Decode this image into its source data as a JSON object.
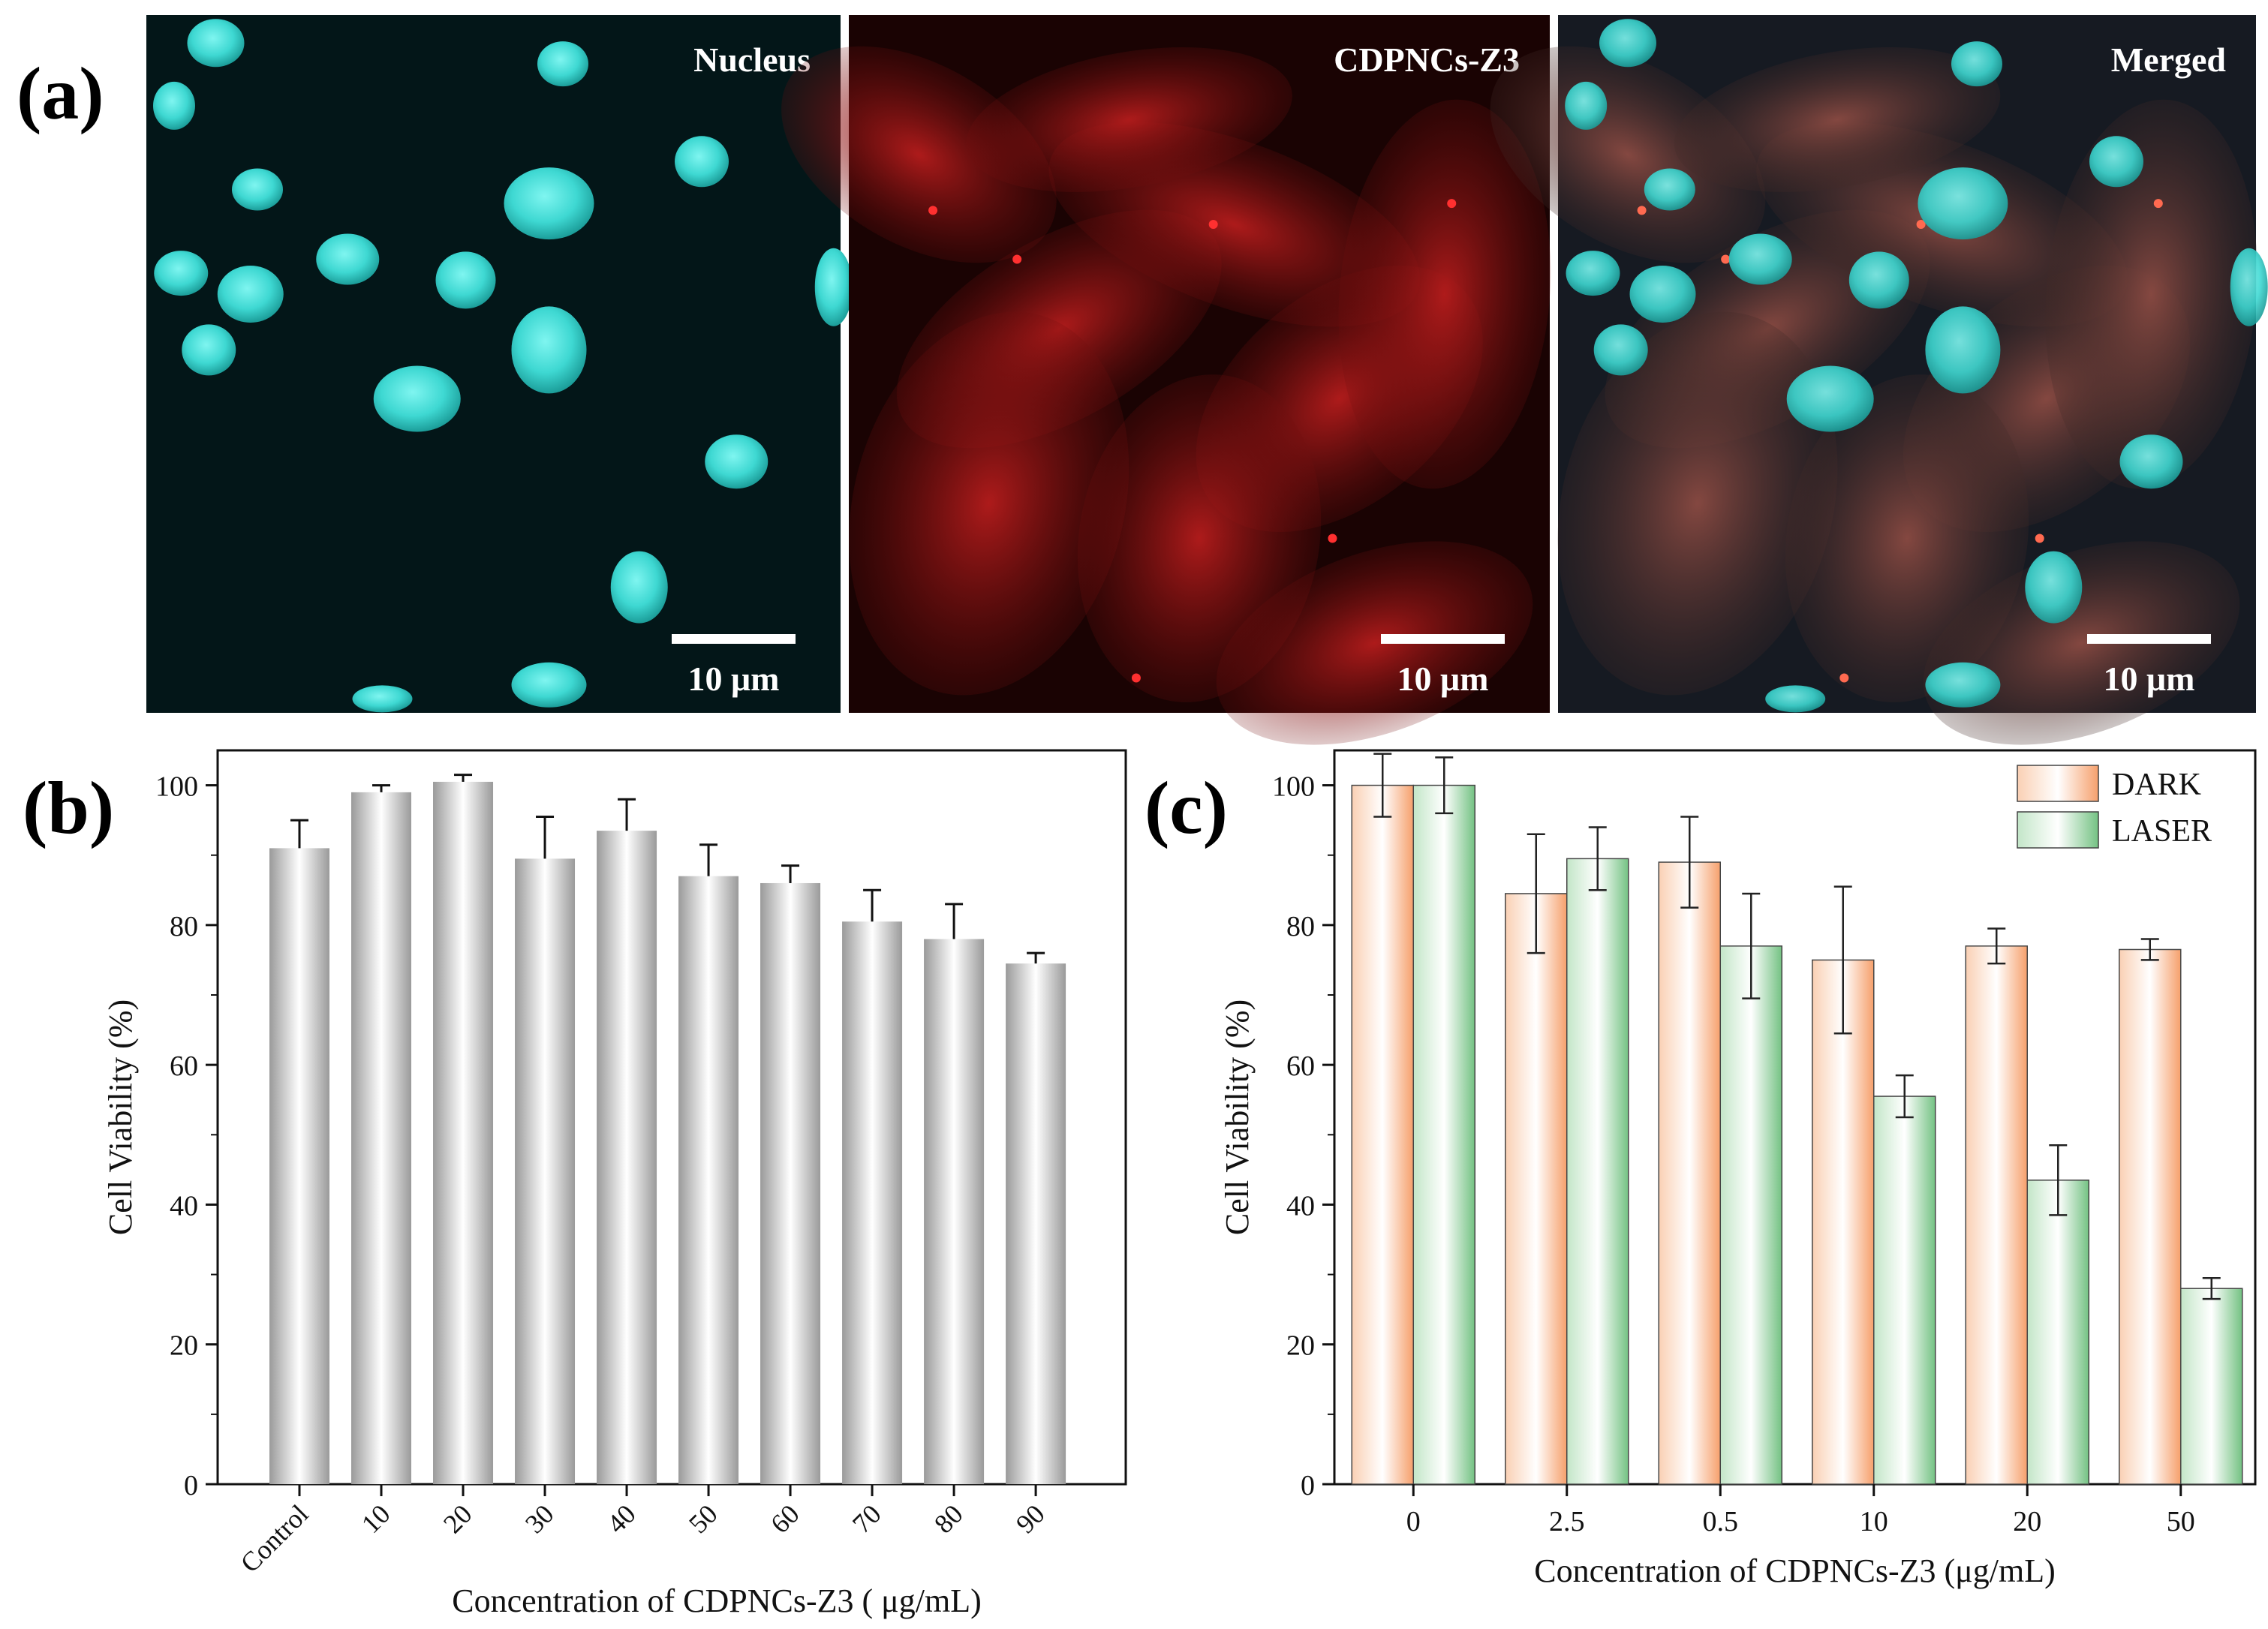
{
  "figure": {
    "panel_a": {
      "letter": "(a)",
      "images": [
        {
          "label": "Nucleus",
          "scale_bar": "10 μm",
          "channel": "nucleus"
        },
        {
          "label": "CDPNCs-Z3",
          "scale_bar": "10 μm",
          "channel": "cdpncs"
        },
        {
          "label": "Merged",
          "scale_bar": "10 μm",
          "channel": "merged"
        }
      ]
    },
    "panel_b_letter": "(b)",
    "panel_c_letter": "(c)"
  },
  "colors": {
    "nucleus": "#2fd6d2",
    "cdpncs_red": "#b01818",
    "dark_bar": "#f6a06c",
    "laser_bar": "#74c283",
    "gray_bar": "#8a8a8a"
  },
  "chart_data": [
    {
      "type": "bar",
      "panel": "b",
      "categories": [
        "Control",
        "10",
        "20",
        "30",
        "40",
        "50",
        "60",
        "70",
        "80",
        "90"
      ],
      "values": [
        91,
        99,
        100.5,
        89.5,
        93.5,
        87,
        86,
        80.5,
        78,
        74.5
      ],
      "errors": [
        4,
        1,
        1,
        6,
        4.5,
        4.5,
        2.5,
        4.5,
        5,
        1.5
      ],
      "error_style": "upper",
      "xlabel": "Concentration of CDPNCs-Z3 ( μg/mL)",
      "ylabel": "Cell Viability (%)",
      "ylim": [
        0,
        105
      ],
      "yticks": [
        "0",
        "20",
        "40",
        "60",
        "80",
        "100"
      ],
      "xtick_rotation": "rotated-45",
      "grid": false
    },
    {
      "type": "bar",
      "panel": "c",
      "categories": [
        "0",
        "2.5",
        "0.5",
        "10",
        "20",
        "50"
      ],
      "series": [
        {
          "name": "DARK",
          "values": [
            100,
            84.5,
            89,
            75,
            77,
            76.5
          ],
          "errors": [
            4.5,
            8.5,
            6.5,
            10.5,
            2.5,
            1.5
          ]
        },
        {
          "name": "LASER",
          "values": [
            100,
            89.5,
            77,
            55.5,
            43.5,
            28
          ],
          "errors": [
            4,
            4.5,
            7.5,
            3,
            5,
            1.5
          ]
        }
      ],
      "xlabel": "Concentration of CDPNCs-Z3 (μg/mL)",
      "ylabel": "Cell Viability (%)",
      "ylim": [
        0,
        105
      ],
      "yticks": [
        "0",
        "20",
        "40",
        "60",
        "80",
        "100"
      ],
      "legend": "top-right",
      "grid": false
    }
  ]
}
